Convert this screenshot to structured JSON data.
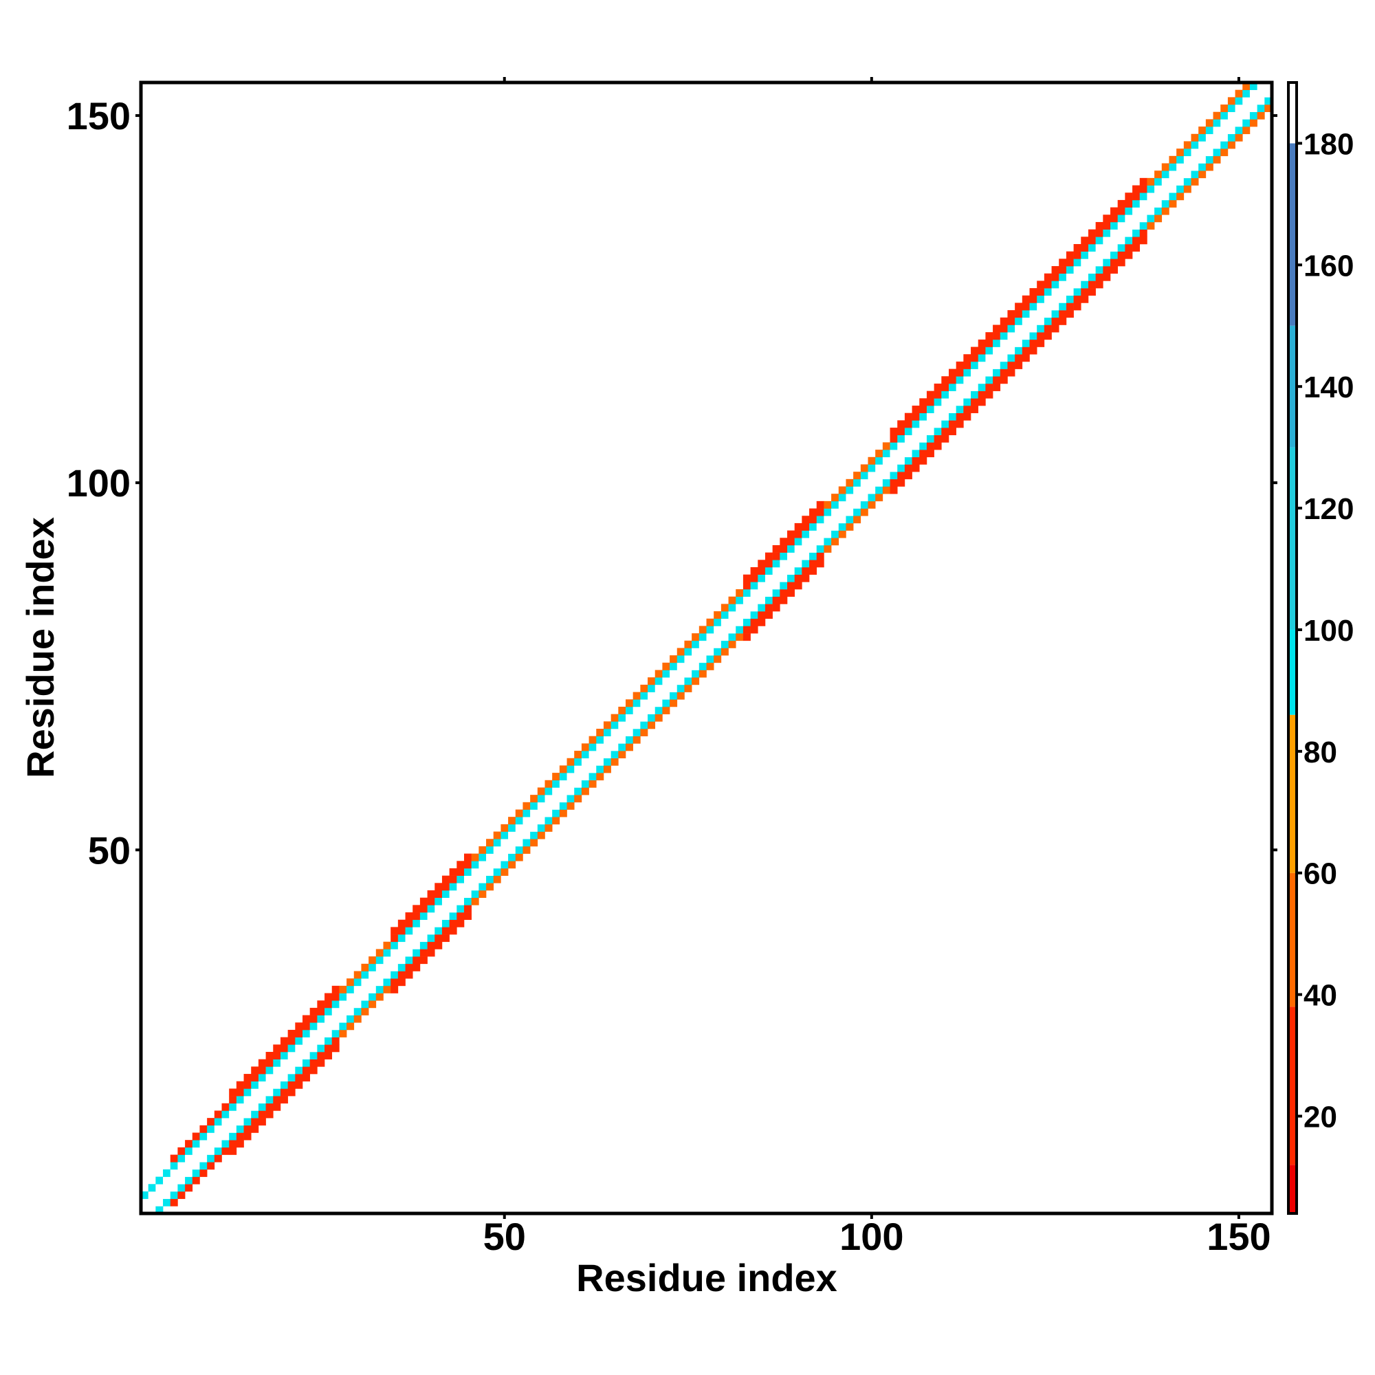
{
  "chart_data": {
    "type": "heatmap",
    "title": "",
    "xlabel": "Residue index",
    "ylabel": "Residue index",
    "xlim": [
      0.5,
      154.5
    ],
    "ylim": [
      0.5,
      154.5
    ],
    "x_ticks": [
      50,
      100,
      150
    ],
    "y_ticks": [
      50,
      100,
      150
    ],
    "grid": false,
    "legend": "right",
    "colorbar": {
      "min": 4,
      "max": 190,
      "ticks": [
        20,
        40,
        60,
        80,
        100,
        120,
        140,
        160,
        180
      ],
      "colors": [
        {
          "from": 4,
          "to": 12,
          "color": "#ee0000"
        },
        {
          "from": 12,
          "to": 38,
          "color": "#ff2a00"
        },
        {
          "from": 38,
          "to": 60,
          "color": "#ff6a00"
        },
        {
          "from": 60,
          "to": 86,
          "color": "#ffa000"
        },
        {
          "from": 86,
          "to": 100,
          "color": "#00e5ee"
        },
        {
          "from": 100,
          "to": 130,
          "color": "#22ccdd"
        },
        {
          "from": 130,
          "to": 150,
          "color": "#2cb0d6"
        },
        {
          "from": 150,
          "to": 180,
          "color": "#4a7cbf"
        },
        {
          "from": 180,
          "to": 190,
          "color": "#ffffff"
        }
      ]
    },
    "band_segments": [
      {
        "from": 1,
        "to": 4,
        "halfwidth": 2,
        "value": 25
      },
      {
        "from": 5,
        "to": 12,
        "halfwidth": 3,
        "value": 25
      },
      {
        "from": 13,
        "to": 27,
        "halfwidth": 4,
        "value": 30
      },
      {
        "from": 28,
        "to": 34,
        "halfwidth": 3,
        "value": 65
      },
      {
        "from": 35,
        "to": 45,
        "halfwidth": 4,
        "value": 30
      },
      {
        "from": 46,
        "to": 56,
        "halfwidth": 3,
        "value": 70
      },
      {
        "from": 57,
        "to": 70,
        "halfwidth": 3,
        "value": 65
      },
      {
        "from": 71,
        "to": 82,
        "halfwidth": 3,
        "value": 70
      },
      {
        "from": 83,
        "to": 93,
        "halfwidth": 4,
        "value": 25
      },
      {
        "from": 94,
        "to": 102,
        "halfwidth": 3,
        "value": 60
      },
      {
        "from": 103,
        "to": 111,
        "halfwidth": 4,
        "value": 25
      },
      {
        "from": 112,
        "to": 118,
        "halfwidth": 4,
        "value": 30
      },
      {
        "from": 119,
        "to": 128,
        "halfwidth": 4,
        "value": 25
      },
      {
        "from": 129,
        "to": 137,
        "halfwidth": 4,
        "value": 30
      },
      {
        "from": 138,
        "to": 154,
        "halfwidth": 3,
        "value": 70
      }
    ]
  }
}
